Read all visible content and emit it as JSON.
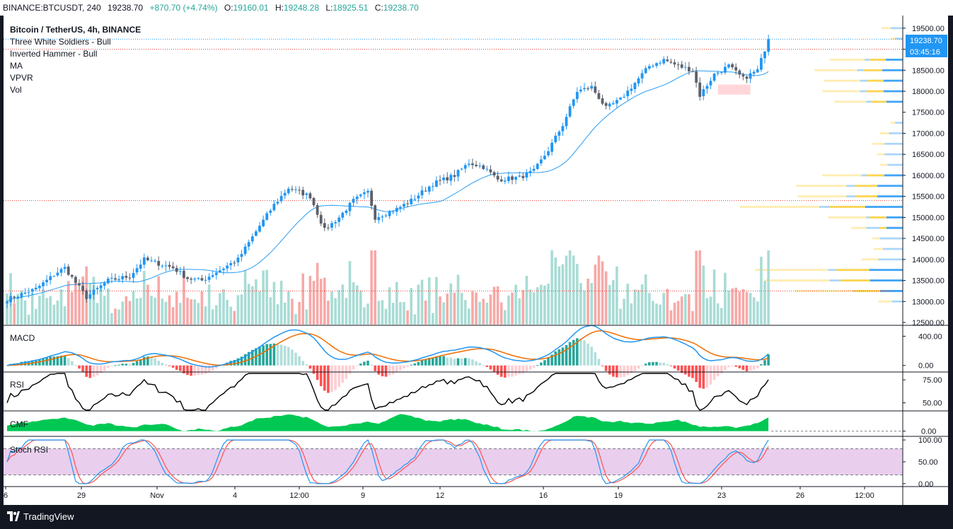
{
  "header": {
    "symbol": "BINANCE:BTCUSDT, 240",
    "last": "19238.70",
    "change": "+870.70 (+4.74%)",
    "open_label": "O:",
    "open": "19160.01",
    "high_label": "H:",
    "high": "19248.28",
    "low_label": "L:",
    "low": "18925.51",
    "close_label": "C:",
    "close": "19238.70"
  },
  "legend": {
    "title": "Bitcoin / TetherUS, 4h, BINANCE",
    "items": [
      "Three White Soldiers - Bull",
      "Inverted Hammer - Bull",
      "MA",
      "VPVR",
      "Vol"
    ]
  },
  "price_badge": {
    "price": "19238.70",
    "countdown": "03:45:16"
  },
  "pane_labels": {
    "macd": "MACD",
    "rsi": "RSI",
    "cmf": "CMF",
    "stoch": "Stoch RSI"
  },
  "footer": {
    "brand": "TradingView"
  },
  "colors": {
    "up": "#2196f3",
    "down": "#5d606b",
    "vol_up": "#a8dcd5",
    "vol_down": "#f7a9a7",
    "ma": "#2a9df4",
    "macd": "#2196f3",
    "signal": "#ef6c00",
    "rsi": "#000000",
    "cmf": "#00c853",
    "stoch_k": "#2196f3",
    "stoch_d": "#ff5252",
    "stoch_band": "#e1bee7",
    "vpvr_up": "#42a5f5",
    "vpvr_down": "#ffd54f"
  },
  "chart_data": [
    {
      "type": "candlestick",
      "title": "Bitcoin / TetherUS, 4h, BINANCE",
      "x_tick_labels": [
        "6",
        "29",
        "Nov",
        "4",
        "12:00",
        "9",
        "12",
        "16",
        "19",
        "23",
        "26",
        "12:00"
      ],
      "y_tick_labels": [
        "19500.00",
        "19000.00",
        "18500.00",
        "18000.00",
        "17500.00",
        "17000.00",
        "16500.00",
        "16000.00",
        "15500.00",
        "15000.00",
        "14500.00",
        "14000.00",
        "13500.00",
        "13000.00",
        "12500.00"
      ],
      "ylim": [
        12450,
        19800
      ],
      "anchors": [
        {
          "i": 0,
          "p": 13050
        },
        {
          "i": 8,
          "p": 13300
        },
        {
          "i": 14,
          "p": 13700
        },
        {
          "i": 16,
          "p": 13800
        },
        {
          "i": 22,
          "p": 13100
        },
        {
          "i": 28,
          "p": 13500
        },
        {
          "i": 34,
          "p": 13600
        },
        {
          "i": 38,
          "p": 14000
        },
        {
          "i": 46,
          "p": 13800
        },
        {
          "i": 50,
          "p": 13550
        },
        {
          "i": 54,
          "p": 13500
        },
        {
          "i": 58,
          "p": 13700
        },
        {
          "i": 64,
          "p": 14000
        },
        {
          "i": 70,
          "p": 14800
        },
        {
          "i": 74,
          "p": 15300
        },
        {
          "i": 78,
          "p": 15700
        },
        {
          "i": 84,
          "p": 15500
        },
        {
          "i": 88,
          "p": 14700
        },
        {
          "i": 92,
          "p": 15000
        },
        {
          "i": 96,
          "p": 15400
        },
        {
          "i": 100,
          "p": 15600
        },
        {
          "i": 102,
          "p": 15000
        },
        {
          "i": 108,
          "p": 15200
        },
        {
          "i": 112,
          "p": 15400
        },
        {
          "i": 118,
          "p": 15800
        },
        {
          "i": 124,
          "p": 16000
        },
        {
          "i": 128,
          "p": 16300
        },
        {
          "i": 132,
          "p": 16200
        },
        {
          "i": 136,
          "p": 15900
        },
        {
          "i": 142,
          "p": 15950
        },
        {
          "i": 146,
          "p": 16100
        },
        {
          "i": 150,
          "p": 16600
        },
        {
          "i": 154,
          "p": 17200
        },
        {
          "i": 158,
          "p": 18000
        },
        {
          "i": 162,
          "p": 18100
        },
        {
          "i": 166,
          "p": 17600
        },
        {
          "i": 170,
          "p": 17800
        },
        {
          "i": 174,
          "p": 18200
        },
        {
          "i": 178,
          "p": 18600
        },
        {
          "i": 182,
          "p": 18750
        },
        {
          "i": 186,
          "p": 18600
        },
        {
          "i": 190,
          "p": 18500
        },
        {
          "i": 192,
          "p": 17900
        },
        {
          "i": 196,
          "p": 18400
        },
        {
          "i": 200,
          "p": 18600
        },
        {
          "i": 204,
          "p": 18300
        },
        {
          "i": 208,
          "p": 18500
        },
        {
          "i": 211,
          "p": 19240
        }
      ],
      "last_price": 19238.7,
      "pattern_box": {
        "from": 197,
        "to": 206,
        "y0": 17920,
        "y1": 18160
      }
    },
    {
      "type": "bar",
      "name": "VPVR",
      "price_bins": [
        19500,
        19250,
        18750,
        18500,
        18250,
        18000,
        17750,
        17250,
        17000,
        16750,
        16500,
        16250,
        16000,
        15750,
        15500,
        15250,
        15000,
        14750,
        14500,
        14250,
        14000,
        13750,
        13500,
        13250,
        13000
      ],
      "up_volume": [
        0.08,
        0.05,
        0.25,
        0.3,
        0.28,
        0.28,
        0.24,
        0.05,
        0.09,
        0.12,
        0.12,
        0.1,
        0.27,
        0.37,
        0.37,
        0.55,
        0.24,
        0.24,
        0.15,
        0.13,
        0.16,
        0.49,
        0.48,
        0.33,
        0.07
      ],
      "down_volume": [
        0.06,
        0.03,
        0.23,
        0.28,
        0.24,
        0.25,
        0.21,
        0.03,
        0.06,
        0.08,
        0.05,
        0.05,
        0.26,
        0.33,
        0.32,
        0.52,
        0.25,
        0.1,
        0.05,
        0.06,
        0.11,
        0.48,
        0.43,
        0.38,
        0.09
      ]
    },
    {
      "type": "line",
      "name": "MACD",
      "y_tick_labels": [
        "400.00",
        "0.00"
      ],
      "ylim": [
        -80,
        530
      ]
    },
    {
      "type": "line",
      "name": "RSI",
      "y_tick_labels": [
        "75.00",
        "50.00"
      ],
      "ylim": [
        42,
        82
      ]
    },
    {
      "type": "area",
      "name": "CMF",
      "y_tick_labels": [
        "0.00"
      ],
      "ylim": [
        -0.12,
        0.5
      ]
    },
    {
      "type": "line",
      "name": "Stoch RSI",
      "y_tick_labels": [
        "100.00",
        "50.00",
        "0.00"
      ],
      "ylim": [
        -5,
        105
      ],
      "bands": [
        20,
        80
      ]
    }
  ]
}
